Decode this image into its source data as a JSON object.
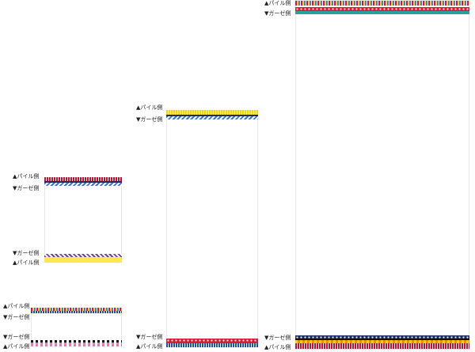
{
  "labels": {
    "pile": "▲パイル側",
    "gauze": "▼ガーゼ側"
  }
}
